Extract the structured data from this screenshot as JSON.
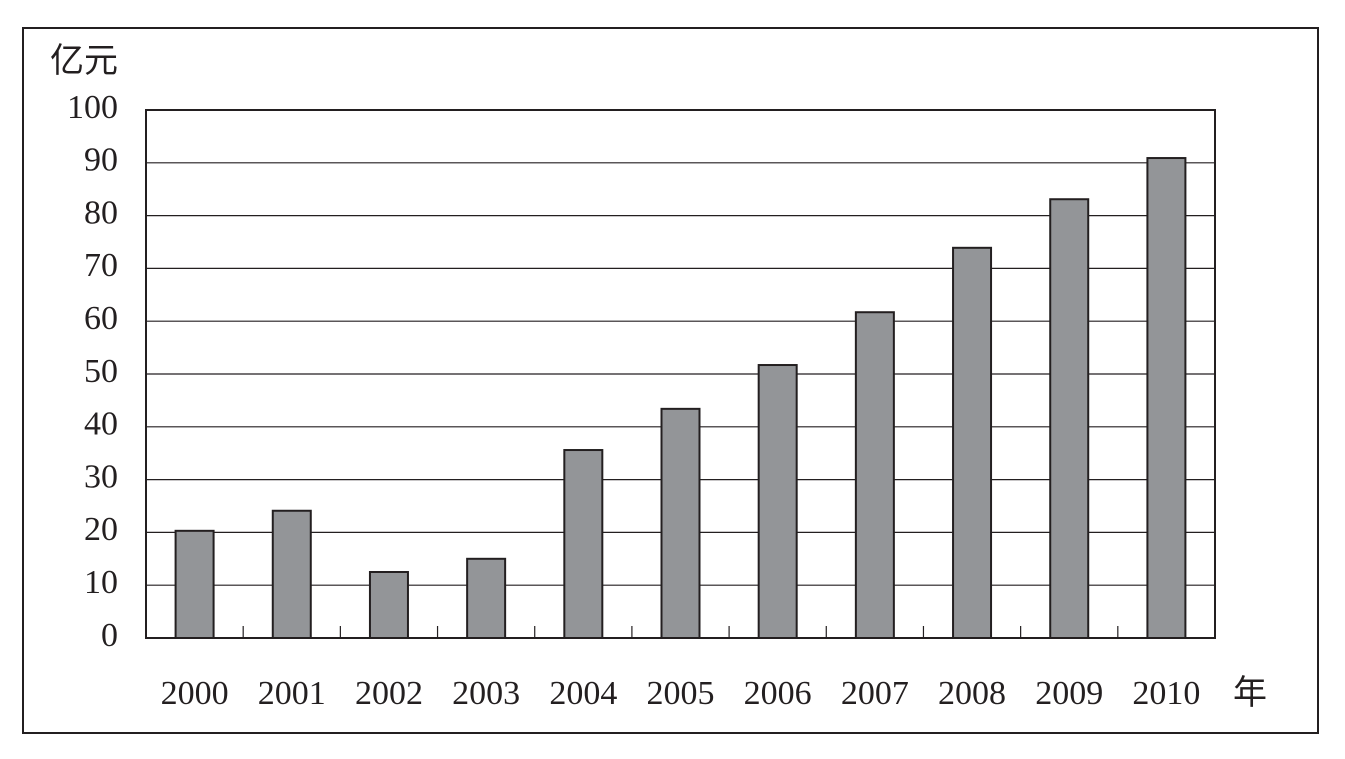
{
  "chart_data": {
    "type": "bar",
    "y_label": "亿元",
    "x_label": "年",
    "categories": [
      "2000",
      "2001",
      "2002",
      "2003",
      "2004",
      "2005",
      "2006",
      "2007",
      "2008",
      "2009",
      "2010"
    ],
    "values": [
      20.3,
      24.1,
      12.5,
      15.0,
      35.6,
      43.4,
      51.7,
      61.7,
      73.9,
      83.1,
      90.9
    ],
    "color": "#939598",
    "ylim": [
      0,
      100
    ],
    "yticks": [
      0,
      10,
      20,
      30,
      40,
      50,
      60,
      70,
      80,
      90,
      100
    ],
    "grid": true
  }
}
